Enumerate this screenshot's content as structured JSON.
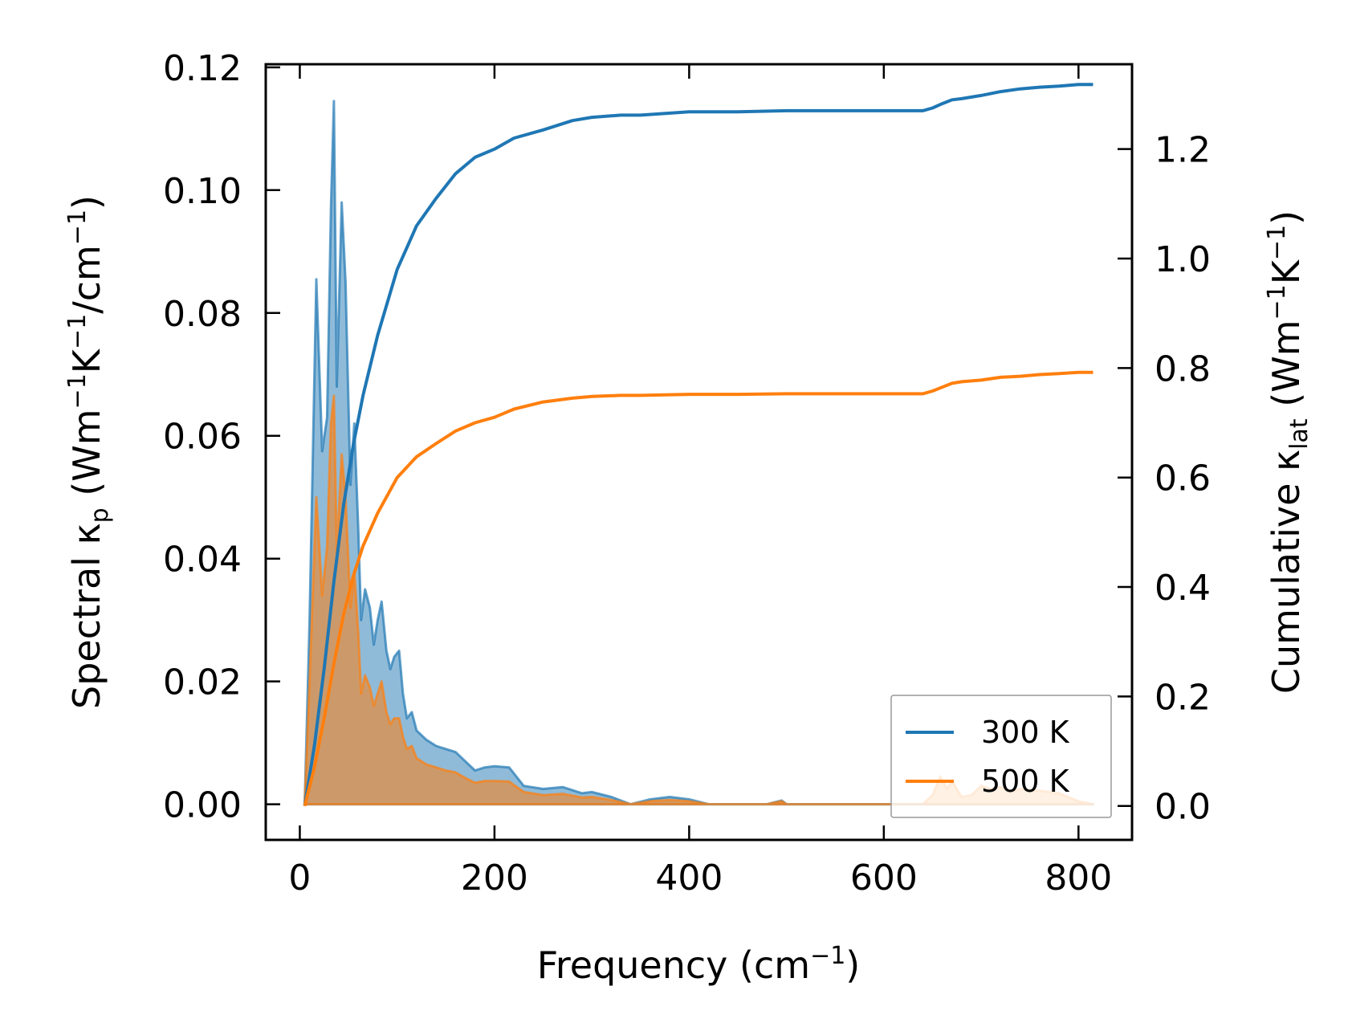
{
  "chart_data": {
    "type": "line",
    "title": "",
    "xlabel": {
      "text": "Frequency (cm",
      "sup": "−1",
      "tail": ")"
    },
    "ylabel_left": {
      "prefix": "Spectral κ",
      "sub": "p",
      "mid": " (Wm",
      "sup1": "−1",
      "mid2": "K",
      "sup2": "−1",
      "mid3": "/cm",
      "sup3": "−1",
      "tail": ")"
    },
    "ylabel_right": {
      "prefix": "Cumulative κ",
      "sub": "lat",
      "mid": " (Wm",
      "sup1": "−1",
      "mid2": "K",
      "sup2": "−1",
      "tail": ")"
    },
    "xlim": [
      -35,
      855
    ],
    "ylim_left": [
      -0.0058,
      0.1205
    ],
    "ylim_right": [
      -0.062,
      1.355
    ],
    "x_ticks": [
      0,
      200,
      400,
      600,
      800
    ],
    "x_tick_labels": [
      "0",
      "200",
      "400",
      "600",
      "800"
    ],
    "y_left_ticks": [
      0,
      0.02,
      0.04,
      0.06,
      0.08,
      0.1,
      0.12
    ],
    "y_left_tick_labels": [
      "0.00",
      "0.02",
      "0.04",
      "0.06",
      "0.08",
      "0.10",
      "0.12"
    ],
    "y_right_ticks": [
      0,
      0.2,
      0.4,
      0.6,
      0.8,
      1.0,
      1.2
    ],
    "y_right_tick_labels": [
      "0.0",
      "0.2",
      "0.4",
      "0.6",
      "0.8",
      "1.0",
      "1.2"
    ],
    "legend_position": "lower-right",
    "series": [
      {
        "name": "300 K",
        "color": "#1f77b4",
        "spectral": {
          "x": [
            5,
            10,
            17,
            23,
            28,
            32,
            35,
            38,
            43,
            47,
            52,
            56,
            60,
            63,
            67,
            72,
            76,
            80,
            84,
            89,
            93,
            97,
            102,
            106,
            110,
            115,
            120,
            130,
            140,
            150,
            160,
            170,
            180,
            190,
            200,
            215,
            230,
            250,
            270,
            290,
            300,
            320,
            340,
            360,
            380,
            400,
            420,
            480,
            495,
            500,
            600,
            640,
            650,
            660,
            670,
            690,
            700,
            720,
            740,
            760,
            780,
            800,
            815
          ],
          "y": [
            0.0,
            0.03,
            0.0855,
            0.0575,
            0.063,
            0.097,
            0.1145,
            0.068,
            0.098,
            0.085,
            0.052,
            0.062,
            0.045,
            0.03,
            0.035,
            0.032,
            0.026,
            0.03,
            0.033,
            0.025,
            0.022,
            0.024,
            0.025,
            0.018,
            0.014,
            0.015,
            0.012,
            0.0105,
            0.0095,
            0.009,
            0.0085,
            0.007,
            0.0055,
            0.006,
            0.0062,
            0.006,
            0.003,
            0.0025,
            0.0028,
            0.0018,
            0.002,
            0.0012,
            0.0,
            0.0008,
            0.0012,
            0.0008,
            0.0,
            0.0,
            0.0006,
            0.0,
            0.0,
            0.0,
            0.0,
            0.0,
            0.0,
            0.0,
            0.0,
            0.0,
            0.0,
            0.0,
            0.0,
            0.0,
            0.0
          ]
        },
        "cumulative": {
          "x": [
            5,
            15,
            25,
            35,
            45,
            55,
            65,
            80,
            100,
            120,
            140,
            160,
            180,
            200,
            220,
            250,
            280,
            300,
            330,
            350,
            400,
            450,
            500,
            550,
            600,
            640,
            650,
            660,
            670,
            680,
            700,
            720,
            740,
            760,
            780,
            800,
            815
          ],
          "y": [
            0.0,
            0.11,
            0.25,
            0.41,
            0.55,
            0.66,
            0.75,
            0.86,
            0.98,
            1.06,
            1.11,
            1.155,
            1.185,
            1.2,
            1.22,
            1.235,
            1.252,
            1.258,
            1.262,
            1.262,
            1.268,
            1.268,
            1.27,
            1.27,
            1.27,
            1.27,
            1.275,
            1.283,
            1.29,
            1.292,
            1.298,
            1.305,
            1.31,
            1.313,
            1.315,
            1.318,
            1.318
          ]
        }
      },
      {
        "name": "500 K",
        "color": "#ff7f0e",
        "spectral": {
          "x": [
            5,
            10,
            17,
            23,
            28,
            32,
            35,
            38,
            43,
            47,
            52,
            56,
            60,
            63,
            67,
            72,
            76,
            80,
            84,
            89,
            93,
            97,
            102,
            106,
            110,
            115,
            120,
            130,
            140,
            150,
            160,
            170,
            180,
            190,
            200,
            215,
            230,
            250,
            270,
            290,
            300,
            320,
            340,
            360,
            380,
            400,
            420,
            480,
            495,
            500,
            600,
            640,
            650,
            658,
            665,
            670,
            680,
            690,
            700,
            710,
            720,
            730,
            740,
            760,
            780,
            800,
            815
          ],
          "y": [
            0.0,
            0.02,
            0.05,
            0.034,
            0.042,
            0.062,
            0.0665,
            0.041,
            0.057,
            0.05,
            0.032,
            0.038,
            0.028,
            0.018,
            0.021,
            0.019,
            0.016,
            0.018,
            0.02,
            0.015,
            0.013,
            0.014,
            0.014,
            0.011,
            0.009,
            0.0095,
            0.0075,
            0.0065,
            0.006,
            0.0055,
            0.0052,
            0.0043,
            0.0035,
            0.0038,
            0.0038,
            0.0037,
            0.002,
            0.0015,
            0.0017,
            0.0011,
            0.0012,
            0.0007,
            0.0,
            0.0005,
            0.0007,
            0.0005,
            0.0,
            0.0,
            0.0005,
            0.0,
            0.0,
            0.0,
            0.0015,
            0.0045,
            0.0025,
            0.0038,
            0.0012,
            0.0015,
            0.003,
            0.0025,
            0.0028,
            0.002,
            0.0025,
            0.0022,
            0.0018,
            0.0005,
            0.0
          ]
        },
        "cumulative": {
          "x": [
            5,
            15,
            25,
            35,
            45,
            55,
            65,
            80,
            100,
            120,
            140,
            160,
            180,
            200,
            220,
            250,
            280,
            300,
            330,
            350,
            400,
            450,
            500,
            550,
            600,
            640,
            650,
            660,
            670,
            680,
            700,
            720,
            740,
            760,
            780,
            800,
            815
          ],
          "y": [
            0.0,
            0.07,
            0.16,
            0.26,
            0.35,
            0.42,
            0.475,
            0.535,
            0.6,
            0.638,
            0.662,
            0.685,
            0.7,
            0.71,
            0.725,
            0.738,
            0.745,
            0.748,
            0.75,
            0.75,
            0.752,
            0.752,
            0.753,
            0.753,
            0.753,
            0.753,
            0.758,
            0.765,
            0.772,
            0.775,
            0.778,
            0.783,
            0.785,
            0.788,
            0.79,
            0.792,
            0.792
          ]
        }
      }
    ]
  }
}
